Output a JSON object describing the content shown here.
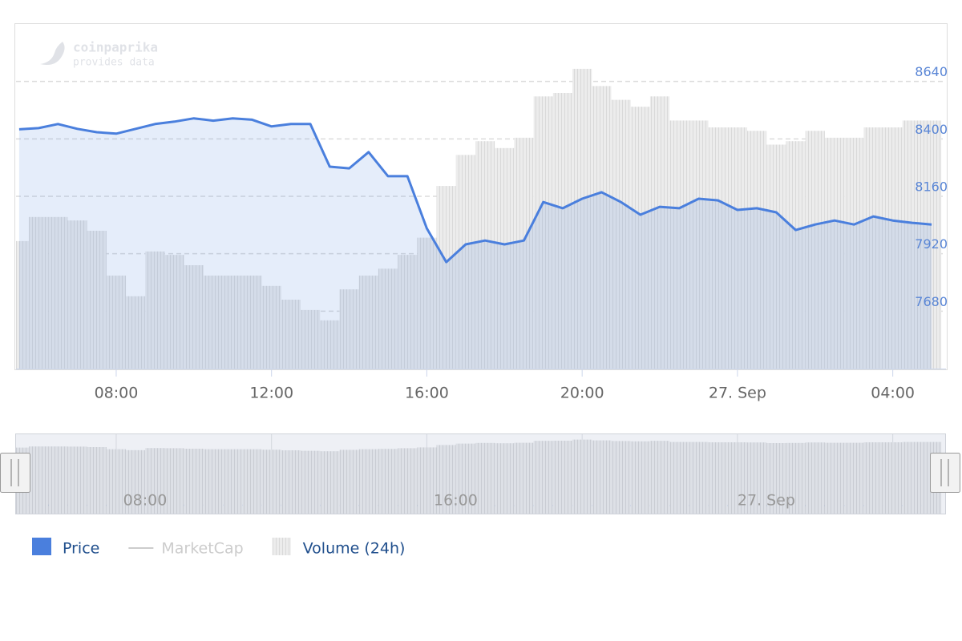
{
  "chart_data": {
    "type": "line",
    "watermark": {
      "name": "coinpaprika",
      "tagline": "provides data"
    },
    "x": [
      5.5,
      6.0,
      6.5,
      7.0,
      7.5,
      8.0,
      8.5,
      9.0,
      9.5,
      10.0,
      10.5,
      11.0,
      11.5,
      12.0,
      12.5,
      13.0,
      13.5,
      14.0,
      14.5,
      15.0,
      15.5,
      16.0,
      16.5,
      17.0,
      17.5,
      18.0,
      18.5,
      19.0,
      19.5,
      20.0,
      20.5,
      21.0,
      21.5,
      22.0,
      22.5,
      23.0,
      23.5,
      24.0,
      24.5,
      25.0,
      25.5,
      26.0,
      26.5,
      27.0,
      27.5,
      28.0,
      28.5,
      29.0
    ],
    "series": [
      {
        "name": "Price",
        "color": "#4a7fdd",
        "values": [
          8440,
          8445,
          8462,
          8442,
          8428,
          8422,
          8442,
          8462,
          8472,
          8486,
          8476,
          8486,
          8480,
          8452,
          8462,
          8462,
          8284,
          8277,
          8345,
          8244,
          8244,
          8026,
          7885,
          7959,
          7975,
          7959,
          7975,
          8136,
          8110,
          8150,
          8177,
          8136,
          8083,
          8116,
          8110,
          8150,
          8143,
          8103,
          8110,
          8093,
          8019,
          8042,
          8059,
          8042,
          8076,
          8059,
          8049,
          8042
        ]
      },
      {
        "name": "Volume (24h)",
        "color": "#e6e6e6",
        "axis": "y2",
        "values": [
          37,
          44,
          44,
          43,
          40,
          27,
          21,
          34,
          33,
          30,
          27,
          27,
          27,
          24,
          20,
          17,
          14,
          23,
          27,
          29,
          33,
          38,
          53,
          62,
          66,
          64,
          67,
          79,
          80,
          87,
          82,
          78,
          76,
          79,
          72,
          72,
          70,
          70,
          69,
          65,
          66,
          69,
          67,
          67,
          70,
          70,
          72,
          72
        ]
      }
    ],
    "hidden_series": [
      {
        "name": "MarketCap"
      }
    ],
    "xlim": [
      5.42,
      29.37
    ],
    "xticks": [
      {
        "value": 8,
        "label": "08:00"
      },
      {
        "value": 12,
        "label": "12:00"
      },
      {
        "value": 16,
        "label": "16:00"
      },
      {
        "value": 20,
        "label": "20:00"
      },
      {
        "value": 24,
        "label": "27. Sep"
      },
      {
        "value": 28,
        "label": "04:00"
      }
    ],
    "ylim": [
      7440,
      8880
    ],
    "yticks": [
      7680,
      7920,
      8160,
      8400,
      8640
    ],
    "y2lim": [
      0,
      100
    ],
    "grid": true
  }
}
